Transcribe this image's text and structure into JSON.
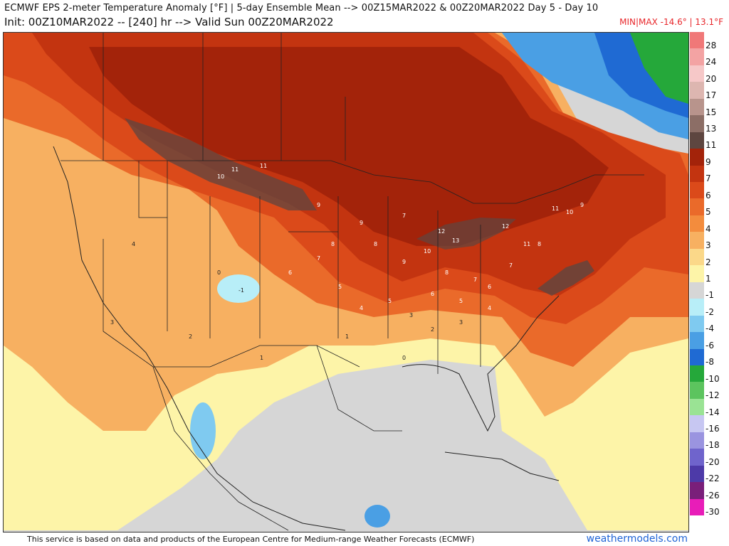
{
  "header": {
    "title_line1": "ECMWF EPS 2-meter Temperature Anomaly [°F] | 5-day Ensemble Mean --> 00Z15MAR2022 & 00Z20MAR2022   Day 5 - Day 10",
    "title_line2": "Init: 00Z10MAR2022 -- [240] hr --> Valid Sun 00Z20MAR2022",
    "minmax": "MIN|MAX -14.6° | 13.1°F"
  },
  "colors": {
    "ocean_neutral": "#d6d6d6",
    "warm_accent": "#b01f0a",
    "minmax_text": "#e8262a",
    "site_link": "#1e63d6"
  },
  "legend": {
    "labels": [
      "28",
      "24",
      "20",
      "17",
      "15",
      "13",
      "11",
      "9",
      "7",
      "6",
      "5",
      "4",
      "3",
      "2",
      "1",
      "-1",
      "-2",
      "-4",
      "-6",
      "-8",
      "-10",
      "-12",
      "-14",
      "-16",
      "-18",
      "-20",
      "-22",
      "-26",
      "-30"
    ],
    "colors": [
      "#f07878",
      "#f3a3a3",
      "#f6c8c8",
      "#ddb6b0",
      "#b8948c",
      "#8c6e66",
      "#5e4640",
      "#a3230a",
      "#c33410",
      "#db4a1a",
      "#ea6a2a",
      "#f38c3d",
      "#f7b061",
      "#fbd889",
      "#fdf4a8",
      "#d6d6d6",
      "#b8eef8",
      "#7fcaf0",
      "#4a9fe4",
      "#1f6ad3",
      "#25a83a",
      "#5cc45e",
      "#9ae394",
      "#c7c7f2",
      "#9a94e0",
      "#6f64cc",
      "#4d3aa8",
      "#7a1f7a",
      "#e81db8"
    ]
  },
  "map": {
    "anomaly_labels": [
      "11",
      "11",
      "10",
      "9",
      "9",
      "8",
      "8",
      "7",
      "7",
      "6",
      "5",
      "4",
      "3",
      "2",
      "1",
      "0",
      "-1",
      "12",
      "13",
      "12",
      "11",
      "10",
      "9",
      "8",
      "7",
      "6",
      "5",
      "4",
      "3",
      "2",
      "1",
      "0",
      "11",
      "10",
      "9",
      "8",
      "7",
      "6",
      "5",
      "4",
      "3"
    ]
  },
  "footer": {
    "credit": "This service is based on data and products of the European Centre for Medium-range Weather Forecasts (ECMWF)",
    "site": "weathermodels.com"
  }
}
